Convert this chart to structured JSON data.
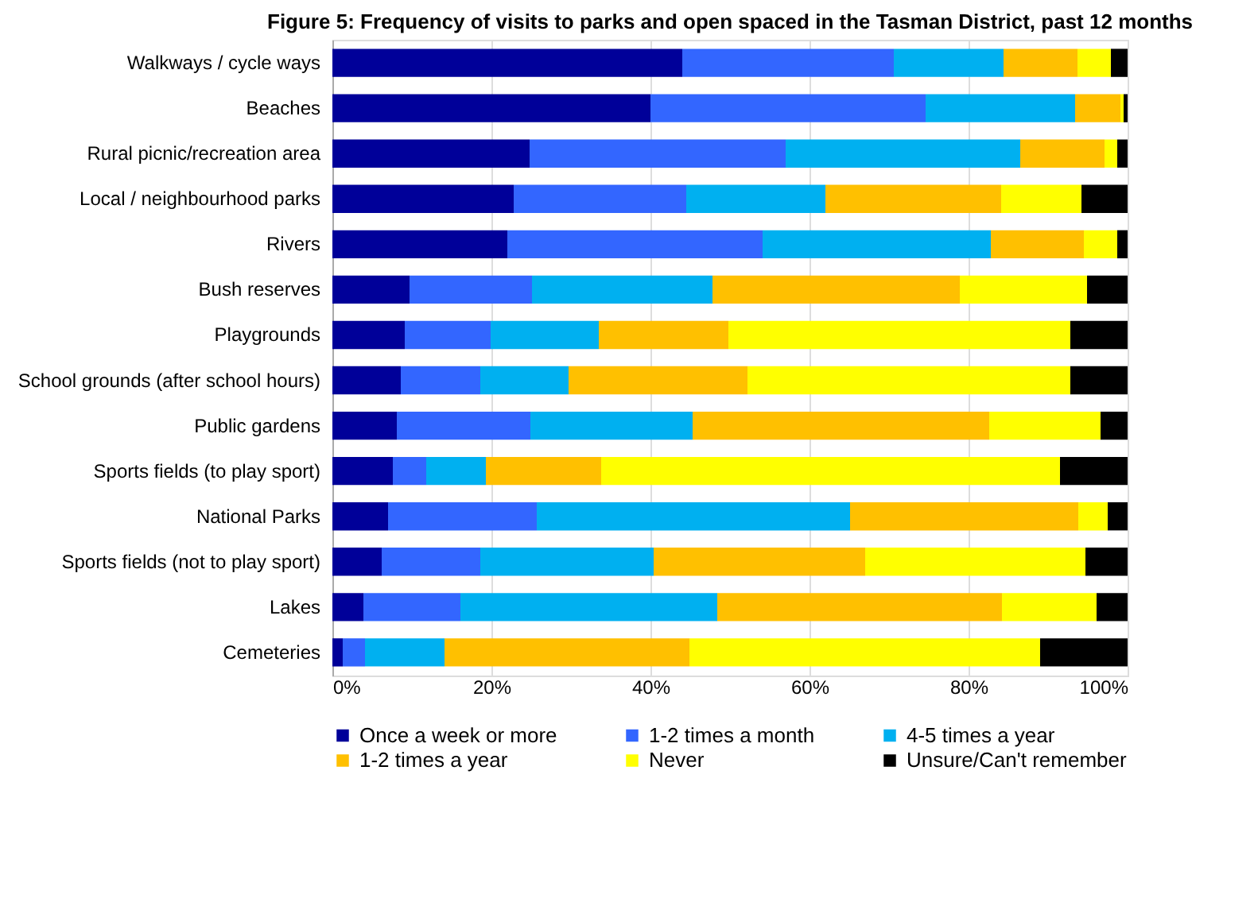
{
  "chart_data": {
    "type": "bar",
    "orientation": "horizontal",
    "stacked": true,
    "title": "Figure 5: Frequency of visits to parks and open spaced in the Tasman District, past 12 months",
    "categories": [
      "Walkways / cycle ways",
      "Beaches",
      "Rural picnic/recreation area",
      "Local / neighbourhood parks",
      "Rivers",
      "Bush reserves",
      "Playgrounds",
      "School grounds (after school hours)",
      "Public gardens",
      "Sports fields (to play sport)",
      "National Parks",
      "Sports fields (not to play sport)",
      "Lakes",
      "Cemeteries"
    ],
    "series": [
      {
        "name": "Once a week or more",
        "color": "#000099",
        "values": [
          44.0,
          40.0,
          24.8,
          22.8,
          22.0,
          9.7,
          9.1,
          8.6,
          8.1,
          7.6,
          7.0,
          6.2,
          3.9,
          1.3
        ]
      },
      {
        "name": "1-2 times a month",
        "color": "#3366ff",
        "values": [
          26.6,
          34.6,
          32.2,
          21.7,
          32.1,
          15.4,
          10.8,
          10.0,
          16.8,
          4.2,
          18.7,
          12.4,
          12.2,
          2.8
        ]
      },
      {
        "name": "4-5 times a year",
        "color": "#00b0f0",
        "values": [
          13.8,
          18.8,
          29.5,
          17.5,
          28.7,
          22.7,
          13.6,
          11.1,
          20.4,
          7.5,
          39.4,
          21.8,
          32.3,
          10.0
        ]
      },
      {
        "name": "1-2 times a year",
        "color": "#ffc000",
        "values": [
          9.3,
          5.7,
          10.6,
          22.1,
          11.7,
          31.1,
          16.3,
          22.5,
          37.3,
          14.5,
          28.7,
          26.6,
          35.8,
          30.8
        ]
      },
      {
        "name": "Never",
        "color": "#ffff00",
        "values": [
          4.2,
          0.4,
          1.6,
          10.1,
          4.2,
          16.0,
          43.0,
          40.6,
          14.0,
          57.7,
          3.7,
          27.7,
          11.9,
          44.1
        ]
      },
      {
        "name": "Unsure/Can't remember",
        "color": "#000000",
        "values": [
          2.1,
          0.5,
          1.3,
          5.8,
          1.3,
          5.1,
          7.2,
          7.2,
          3.4,
          8.5,
          2.5,
          5.3,
          3.9,
          11.0
        ]
      }
    ],
    "xlim": [
      0,
      100
    ],
    "xticks": [
      {
        "value": 0,
        "label": "0%"
      },
      {
        "value": 20,
        "label": "20%"
      },
      {
        "value": 40,
        "label": "40%"
      },
      {
        "value": 60,
        "label": "60%"
      },
      {
        "value": 80,
        "label": "80%"
      },
      {
        "value": 100,
        "label": "100%"
      }
    ],
    "grid": "x",
    "legend": "bottom"
  }
}
